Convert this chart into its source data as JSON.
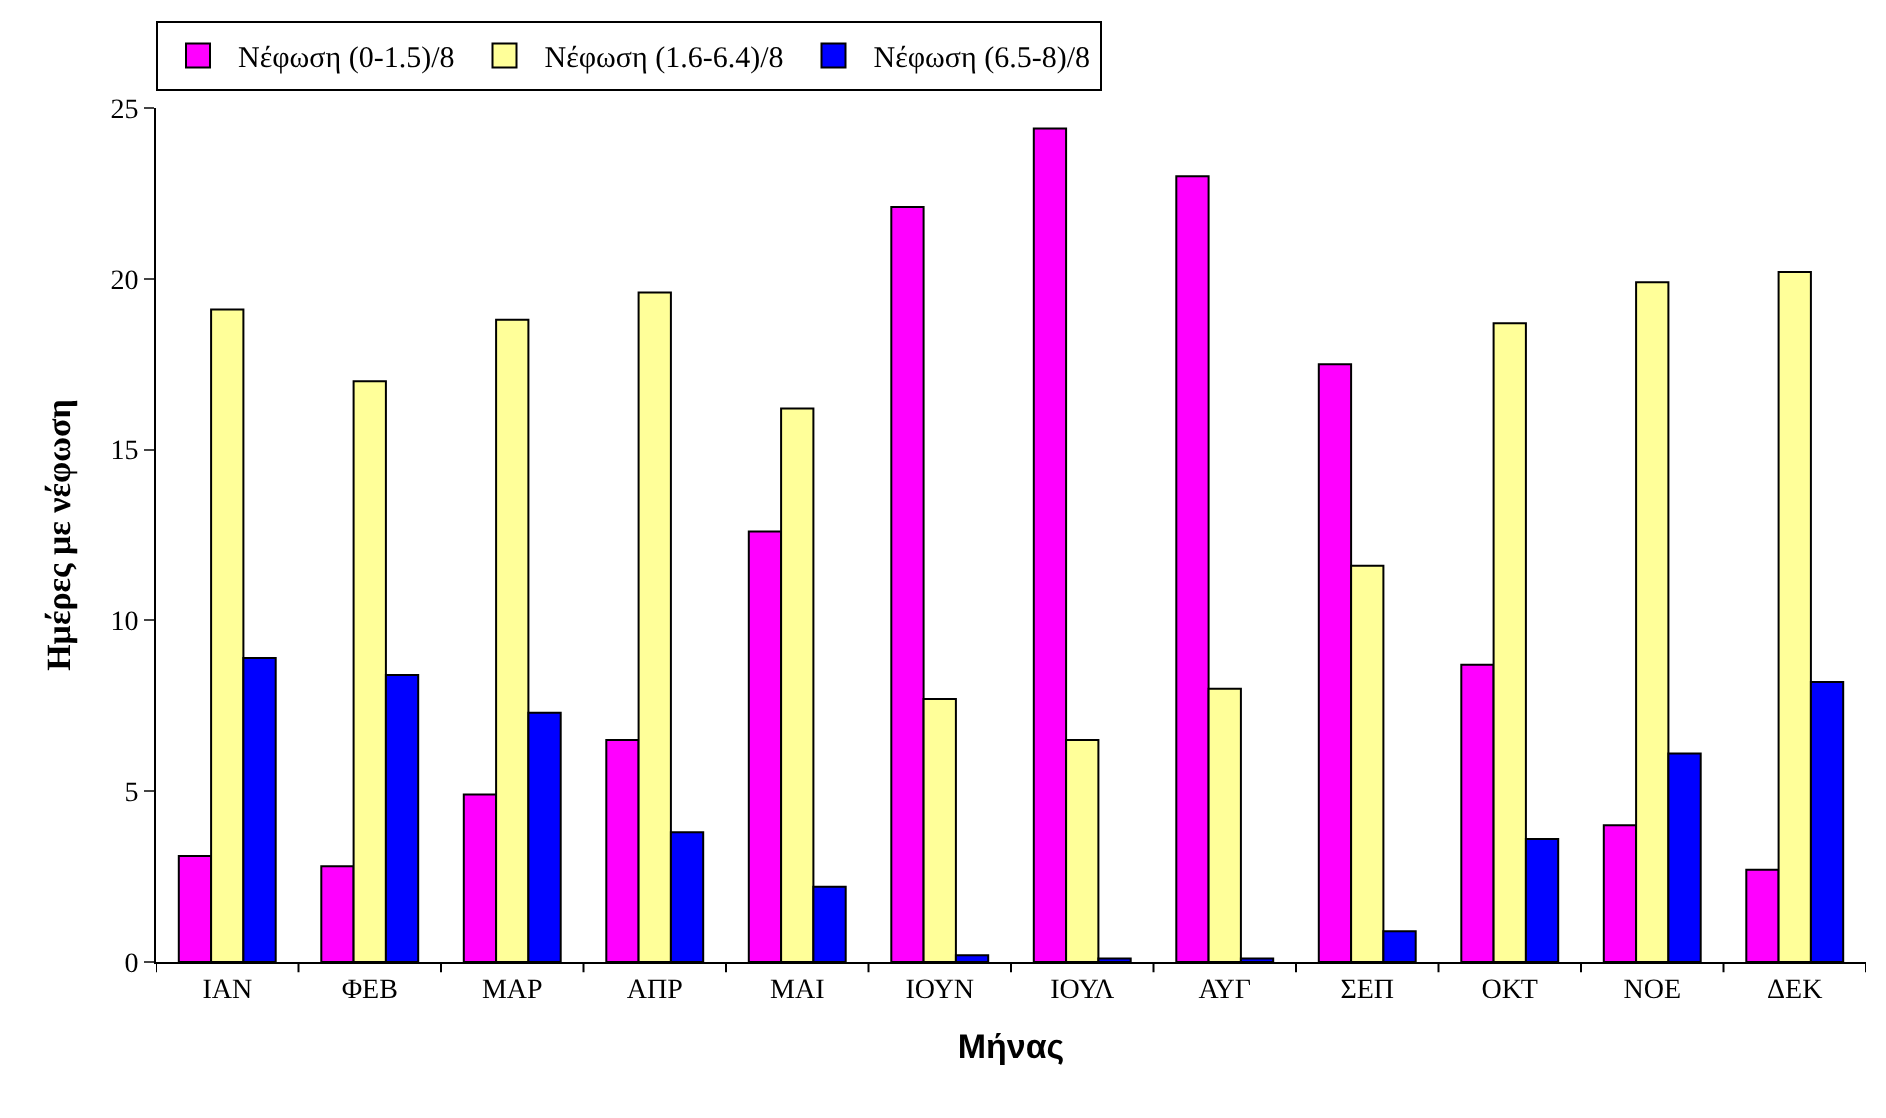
{
  "chart_data": {
    "type": "bar",
    "xlabel": "Μήνας",
    "ylabel": "Ημέρες με νέφωση",
    "categories": [
      "ΙΑΝ",
      "ΦΕΒ",
      "ΜΑΡ",
      "ΑΠΡ",
      "ΜΑΙ",
      "ΙΟΥΝ",
      "ΙΟΥΛ",
      "ΑΥΓ",
      "ΣΕΠ",
      "ΟΚΤ",
      "ΝΟΕ",
      "ΔΕΚ"
    ],
    "series": [
      {
        "name": "Νέφωση (0-1.5)/8",
        "color": "#ff00ff",
        "values": [
          3.1,
          2.8,
          4.9,
          6.5,
          12.6,
          22.1,
          24.4,
          23.0,
          17.5,
          8.7,
          4.0,
          2.7
        ]
      },
      {
        "name": "Νέφωση (1.6-6.4)/8",
        "color": "#ffff99",
        "values": [
          19.1,
          17.0,
          18.8,
          19.6,
          16.2,
          7.7,
          6.5,
          8.0,
          11.6,
          18.7,
          19.9,
          20.2
        ]
      },
      {
        "name": "Νέφωση (6.5-8)/8",
        "color": "#0000ff",
        "values": [
          8.9,
          8.4,
          7.3,
          3.8,
          2.2,
          0.2,
          0.1,
          0.1,
          0.9,
          3.6,
          6.1,
          8.2
        ]
      }
    ],
    "ylim": [
      0,
      25
    ],
    "yticks": [
      0,
      5,
      10,
      15,
      20,
      25
    ],
    "legend": "top left"
  }
}
